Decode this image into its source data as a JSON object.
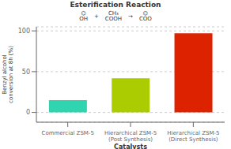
{
  "chart_data": {
    "type": "bar",
    "title": "Esterification Reaction",
    "annotations": [
      "⌬\nOH",
      "+",
      "CH₃\nCOOH",
      "→",
      "⌬\nCOO"
    ],
    "x_label": "Catalysts",
    "y_label": "Benzyl alcohol\nconversion at 8h (%)",
    "categories": [
      "Commercial ZSM-5",
      "Hierarchical ZSM-5\n(Post Synthesis)",
      "Hierarchical ZSM-5\n(Direct Synthesis)"
    ],
    "values": [
      15,
      42,
      97
    ],
    "colors": [
      "#30D5B0",
      "#AACC00",
      "#DD2200"
    ],
    "ylim": [
      -12,
      105
    ],
    "yticks": [
      0,
      50,
      100
    ],
    "grid": true
  }
}
